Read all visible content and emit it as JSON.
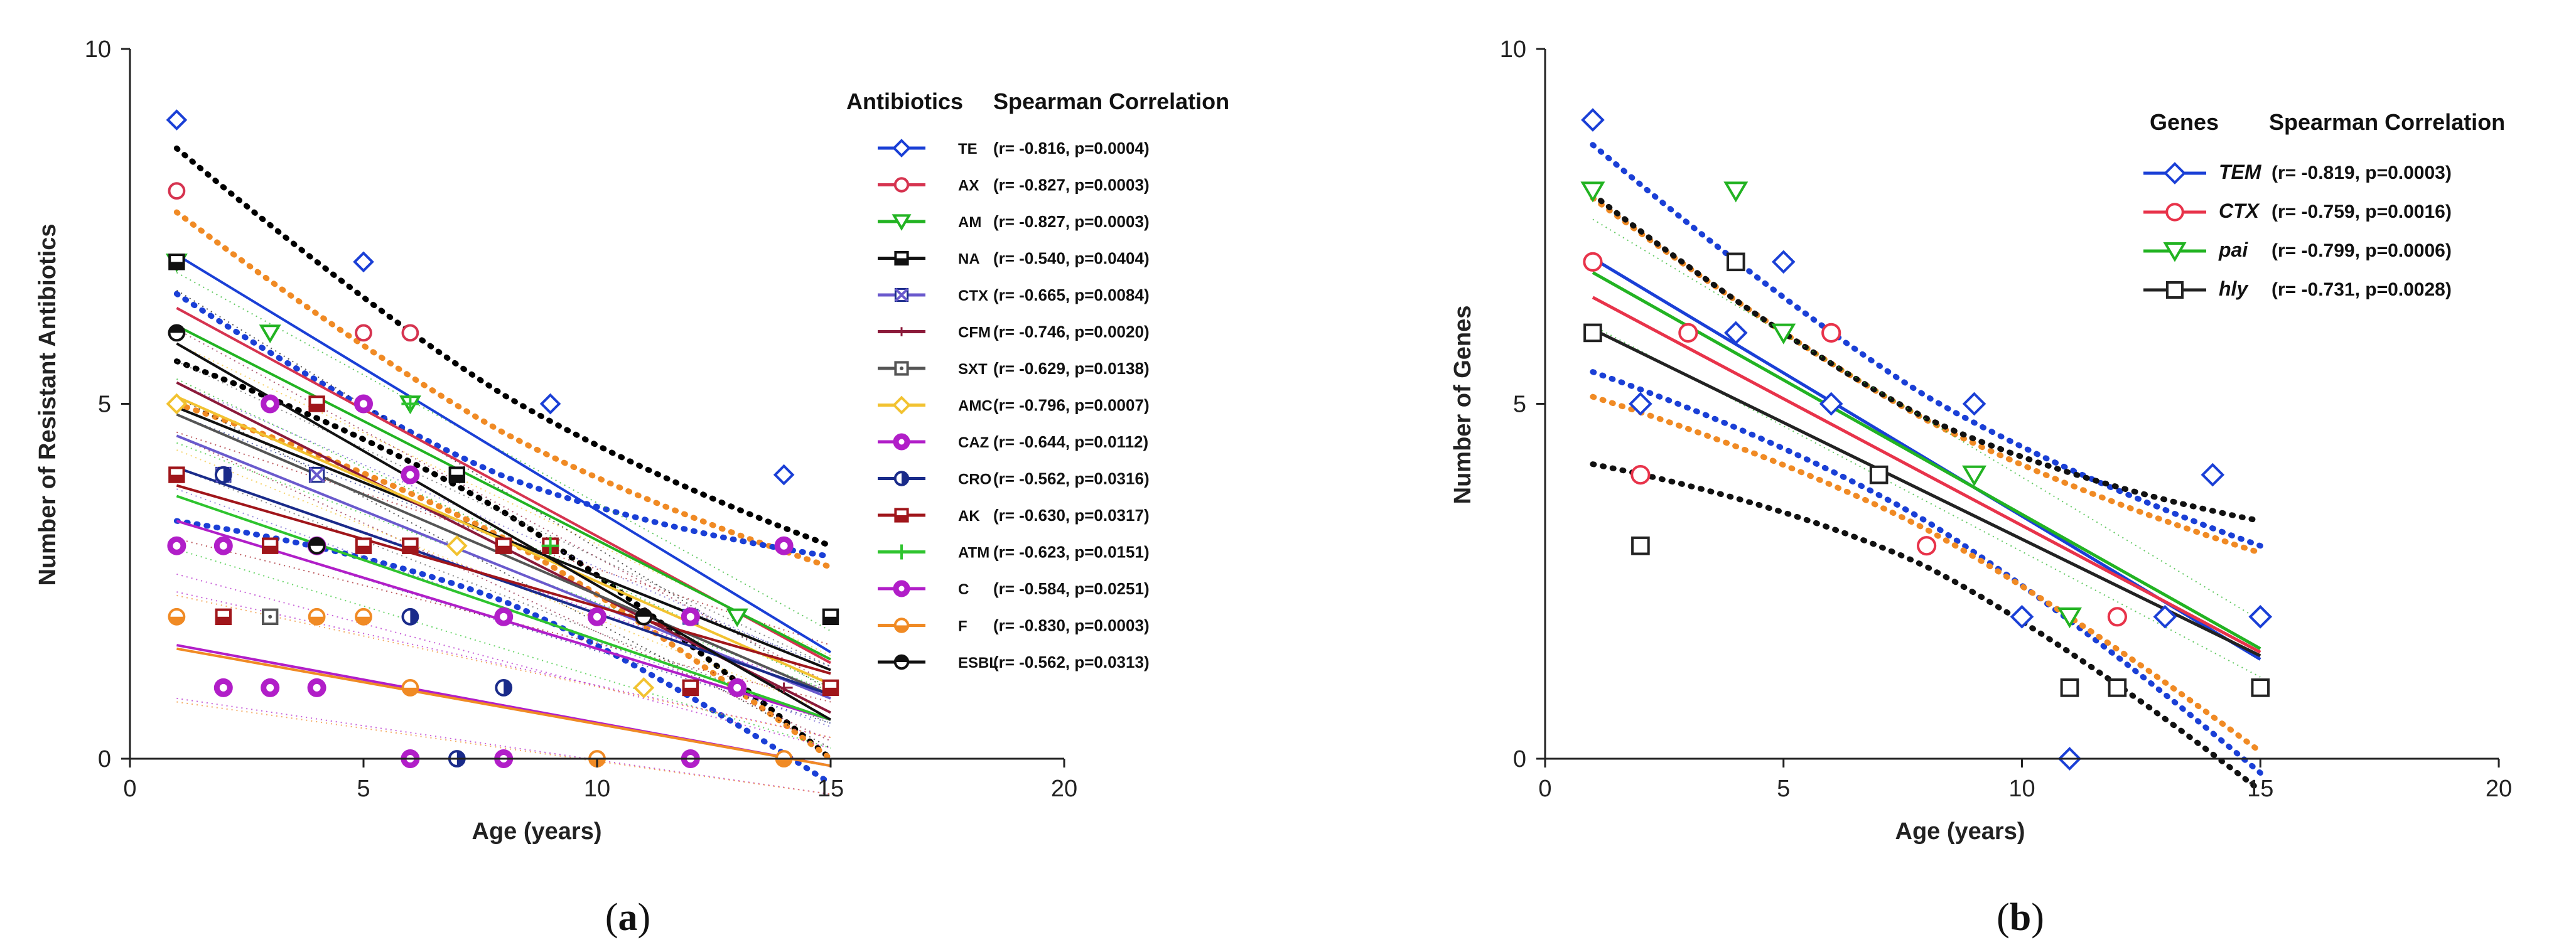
{
  "chart_data": [
    {
      "type": "scatter",
      "panel_label": "(a)",
      "panel_letter": "a",
      "xlabel": "Age (years)",
      "ylabel": "Number of Resistant Antibiotics",
      "xlim": [
        0,
        20
      ],
      "ylim": [
        0,
        10
      ],
      "xticks": [
        "0",
        "5",
        "10",
        "15",
        "20"
      ],
      "yticks": [
        "0",
        "5",
        "10"
      ],
      "legend_title": "Antibiotics",
      "legend_stat_title": "Spearman Correlation",
      "series": [
        {
          "name": "TE",
          "stat": "(r= -0.816, p=0.0004)",
          "color": "#1a3fd6",
          "marker": "diamond",
          "fit": [
            [
              1,
              7.1
            ],
            [
              15,
              1.5
            ]
          ],
          "band": true,
          "band_color": "#000000",
          "band_offset": 1.5,
          "points": [
            [
              1,
              9
            ],
            [
              5,
              7
            ],
            [
              9,
              5
            ],
            [
              14,
              4
            ]
          ]
        },
        {
          "name": "AX",
          "stat": "(r= -0.827, p=0.0003)",
          "color": "#d6334f",
          "marker": "circle",
          "fit": [
            [
              1,
              6.35
            ],
            [
              15,
              1.35
            ]
          ],
          "band": true,
          "band_color": "#f08a24",
          "band_offset": 1.35,
          "points": [
            [
              1,
              8
            ],
            [
              5,
              6
            ],
            [
              6,
              6
            ],
            [
              11,
              2
            ]
          ]
        },
        {
          "name": "AM",
          "stat": "(r= -0.827, p=0.0003)",
          "color": "#22b322",
          "marker": "triangle-down",
          "fit": [
            [
              1,
              6.1
            ],
            [
              15,
              1.4
            ]
          ],
          "band": false,
          "points": [
            [
              1,
              7
            ],
            [
              3,
              6
            ],
            [
              6,
              5
            ],
            [
              13,
              2
            ]
          ]
        },
        {
          "name": "NA",
          "stat": "(r= -0.540, p=0.0404)",
          "color": "#111111",
          "marker": "square-half",
          "fit": [
            [
              1,
              4.95
            ],
            [
              15,
              1.25
            ]
          ],
          "band": true,
          "band_color": "#1a3fd6",
          "band_offset": 1.6,
          "points": [
            [
              1,
              7
            ],
            [
              7,
              4
            ],
            [
              9,
              3
            ],
            [
              15,
              2
            ]
          ]
        },
        {
          "name": "CTX",
          "stat": "(r= -0.665, p=0.0084)",
          "color": "#6a5acd",
          "marker": "x-cross",
          "fit": [
            [
              1,
              4.55
            ],
            [
              15,
              0.85
            ]
          ],
          "band": false,
          "points": [
            [
              2,
              4
            ],
            [
              4,
              4
            ],
            [
              12,
              2
            ]
          ]
        },
        {
          "name": "CFM",
          "stat": "(r= -0.746, p=0.0020)",
          "color": "#8b1a3a",
          "marker": "plus-thin",
          "fit": [
            [
              1,
              5.3
            ],
            [
              15,
              0.65
            ]
          ],
          "band": false,
          "points": [
            [
              3,
              5
            ],
            [
              8,
              3
            ],
            [
              14,
              1
            ]
          ]
        },
        {
          "name": "SXT",
          "stat": "(r= -0.629, p=0.0138)",
          "color": "#555555",
          "marker": "square-dot",
          "fit": [
            [
              1,
              4.85
            ],
            [
              15,
              0.9
            ]
          ],
          "band": false,
          "points": [
            [
              3,
              2
            ],
            [
              6,
              3
            ],
            [
              12,
              1
            ]
          ]
        },
        {
          "name": "AMC",
          "stat": "(r= -0.796, p=0.0007)",
          "color": "#f2c230",
          "marker": "diamond",
          "fit": [
            [
              1,
              5.1
            ],
            [
              15,
              1.05
            ]
          ],
          "band": false,
          "points": [
            [
              1,
              5
            ],
            [
              7,
              3
            ],
            [
              11,
              1
            ]
          ]
        },
        {
          "name": "CAZ",
          "stat": "(r= -0.644, p=0.0112)",
          "color": "#b11ec8",
          "marker": "ring",
          "fit": [
            [
              1,
              3.35
            ],
            [
              15,
              0.55
            ]
          ],
          "band": false,
          "points": [
            [
              2,
              1
            ],
            [
              3,
              1
            ],
            [
              4,
              1
            ],
            [
              6,
              0
            ],
            [
              8,
              0
            ],
            [
              12,
              0
            ]
          ]
        },
        {
          "name": "CRO",
          "stat": "(r= -0.562, p=0.0316)",
          "color": "#1a2b8a",
          "marker": "circle-half",
          "fit": [
            [
              1,
              4.1
            ],
            [
              15,
              0.9
            ]
          ],
          "band": false,
          "points": [
            [
              2,
              4
            ],
            [
              6,
              2
            ],
            [
              7,
              0
            ],
            [
              8,
              1
            ]
          ]
        },
        {
          "name": "AK",
          "stat": "(r= -0.630, p=0.0317)",
          "color": "#a0161b",
          "marker": "square-halfbottom",
          "fit": [
            [
              1,
              3.85
            ],
            [
              15,
              1.2
            ]
          ],
          "band": false,
          "points": [
            [
              1,
              4
            ],
            [
              2,
              2
            ],
            [
              3,
              3
            ],
            [
              4,
              5
            ],
            [
              5,
              3
            ],
            [
              6,
              3
            ],
            [
              8,
              3
            ],
            [
              9,
              3
            ],
            [
              12,
              1
            ],
            [
              15,
              1
            ]
          ]
        },
        {
          "name": "ATM",
          "stat": "(r= -0.623, p=0.0151)",
          "color": "#2ec42e",
          "marker": "plus",
          "fit": [
            [
              1,
              3.7
            ],
            [
              15,
              0.55
            ]
          ],
          "band": false,
          "points": [
            [
              6,
              5
            ],
            [
              9,
              3
            ]
          ]
        },
        {
          "name": "C",
          "stat": "(r= -0.584, p=0.0251)",
          "color": "#b11ec8",
          "marker": "ring",
          "fit": [
            [
              1,
              1.6
            ],
            [
              15,
              -0.1
            ]
          ],
          "band": false,
          "points": [
            [
              1,
              3
            ],
            [
              2,
              3
            ],
            [
              3,
              5
            ],
            [
              4,
              3
            ],
            [
              5,
              5
            ],
            [
              6,
              4
            ],
            [
              8,
              2
            ],
            [
              10,
              2
            ],
            [
              12,
              2
            ],
            [
              13,
              1
            ],
            [
              14,
              3
            ]
          ]
        },
        {
          "name": "F",
          "stat": "(r= -0.830, p=0.0003)",
          "color": "#f08a24",
          "marker": "circle-halfbottom",
          "fit": [
            [
              1,
              1.55
            ],
            [
              15,
              -0.1
            ]
          ],
          "band": false,
          "points": [
            [
              1,
              2
            ],
            [
              4,
              2
            ],
            [
              5,
              2
            ],
            [
              6,
              1
            ],
            [
              10,
              0
            ],
            [
              14,
              0
            ]
          ]
        },
        {
          "name": "ESBL",
          "stat": "(r= -0.562, p=0.0313)",
          "color": "#111111",
          "marker": "circle-halftop",
          "fit": [
            [
              1,
              5.85
            ],
            [
              15,
              0.55
            ]
          ],
          "band": false,
          "points": [
            [
              1,
              6
            ],
            [
              4,
              3
            ],
            [
              11,
              2
            ]
          ]
        }
      ]
    },
    {
      "type": "scatter",
      "panel_label": "(b)",
      "panel_letter": "b",
      "xlabel": "Age (years)",
      "ylabel": "Number of Genes",
      "xlim": [
        0,
        20
      ],
      "ylim": [
        0,
        10
      ],
      "xticks": [
        "0",
        "5",
        "10",
        "15",
        "20"
      ],
      "yticks": [
        "0",
        "5",
        "10"
      ],
      "legend_title": "Genes",
      "legend_stat_title": "Spearman Correlation",
      "series": [
        {
          "name": "TEM",
          "stat": "(r= -0.819, p=0.0003)",
          "color": "#1a3fd6",
          "marker": "diamond",
          "fit": [
            [
              1,
              7.05
            ],
            [
              15,
              1.4
            ]
          ],
          "band": true,
          "band_color": "#1a3fd6",
          "band_offset": 1.6,
          "points": [
            [
              1,
              9
            ],
            [
              2,
              5
            ],
            [
              4,
              6
            ],
            [
              5,
              7
            ],
            [
              6,
              5
            ],
            [
              9,
              5
            ],
            [
              10,
              2
            ],
            [
              11,
              0
            ],
            [
              13,
              2
            ],
            [
              14,
              4
            ],
            [
              15,
              2
            ]
          ]
        },
        {
          "name": "CTX",
          "stat": "(r= -0.759, p=0.0016)",
          "color": "#e8334a",
          "marker": "circle",
          "fit": [
            [
              1,
              6.5
            ],
            [
              15,
              1.5
            ]
          ],
          "band": true,
          "band_color": "#f08a24",
          "band_offset": 1.4,
          "points": [
            [
              1,
              7
            ],
            [
              2,
              4
            ],
            [
              3,
              6
            ],
            [
              6,
              6
            ],
            [
              8,
              3
            ],
            [
              12,
              2
            ]
          ]
        },
        {
          "name": "pai",
          "stat": "(r= -0.799, p=0.0006)",
          "color": "#22b322",
          "marker": "triangle-down",
          "fit": [
            [
              1,
              6.85
            ],
            [
              15,
              1.55
            ]
          ],
          "band": false,
          "points": [
            [
              1,
              8
            ],
            [
              4,
              8
            ],
            [
              5,
              6
            ],
            [
              9,
              4
            ],
            [
              11,
              2
            ]
          ]
        },
        {
          "name": "hly",
          "stat": "(r= -0.731, p=0.0028)",
          "color": "#222222",
          "marker": "square",
          "fit": [
            [
              1,
              6.05
            ],
            [
              15,
              1.45
            ]
          ],
          "band": true,
          "band_color": "#111111",
          "band_offset": 1.9,
          "points": [
            [
              1,
              6
            ],
            [
              2,
              3
            ],
            [
              4,
              7
            ],
            [
              7,
              4
            ],
            [
              11,
              1
            ],
            [
              12,
              1
            ],
            [
              15,
              1
            ]
          ]
        }
      ]
    }
  ]
}
